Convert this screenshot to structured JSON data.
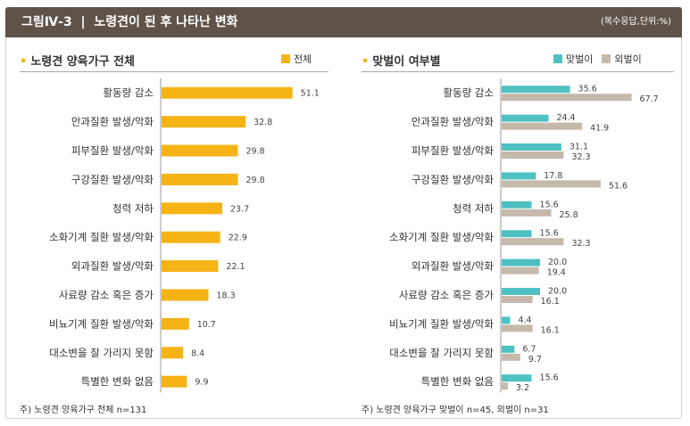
{
  "header": {
    "figure_no": "그림Ⅳ-3",
    "title": "노령견이 된 후 나타난 변화",
    "note": "(복수응답,단위:%)"
  },
  "colors": {
    "total": "#f5b315",
    "dual": "#4fc1c3",
    "single": "#c4b9ab",
    "header_bg": "#5f5349"
  },
  "left_panel": {
    "title": "노령견 양육가구 전체",
    "legend": [
      "전체"
    ],
    "footnote": "주) 노령견 양육가구 전체 n=131"
  },
  "right_panel": {
    "title": "맞벌이 여부별",
    "legend": [
      "맞벌이",
      "외벌이"
    ],
    "footnote": "주) 노령견 양육가구 맞벌이 n=45,  외벌이 n=31"
  },
  "chart_data": [
    {
      "type": "bar",
      "orientation": "horizontal",
      "title": "노령견 양육가구 전체",
      "categories": [
        "활동량 감소",
        "안과질환 발생/악화",
        "피부질환 발생/악화",
        "구강질환 발생/악화",
        "청력 저하",
        "소화기계 질환 발생/악화",
        "외과질환 발생/악화",
        "사료량 감소 혹은 증가",
        "비뇨기계 질환 발생/악화",
        "대소변을 잘 가리지 못함",
        "특별한 변화 없음"
      ],
      "series": [
        {
          "name": "전체",
          "values": [
            51.1,
            32.8,
            29.8,
            29.8,
            23.7,
            22.9,
            22.1,
            18.3,
            10.7,
            8.4,
            9.9
          ]
        }
      ]
    },
    {
      "type": "bar",
      "orientation": "horizontal",
      "title": "맞벌이 여부별",
      "categories": [
        "활동량 감소",
        "안과질환 발생/악화",
        "피부질환 발생/악화",
        "구강질환 발생/악화",
        "청력 저하",
        "소화기계 질환 발생/악화",
        "외과질환 발생/악화",
        "사료량 감소 혹은 증가",
        "비뇨기계 질환 발생/악화",
        "대소변을 잘 가리지 못함",
        "특별한 변화 없음"
      ],
      "series": [
        {
          "name": "맞벌이",
          "values": [
            35.6,
            24.4,
            31.1,
            17.8,
            15.6,
            15.6,
            20.0,
            20.0,
            4.4,
            6.7,
            15.6
          ]
        },
        {
          "name": "외벌이",
          "values": [
            67.7,
            41.9,
            32.3,
            51.6,
            25.8,
            32.3,
            19.4,
            16.1,
            16.1,
            9.7,
            3.2
          ]
        }
      ]
    }
  ]
}
